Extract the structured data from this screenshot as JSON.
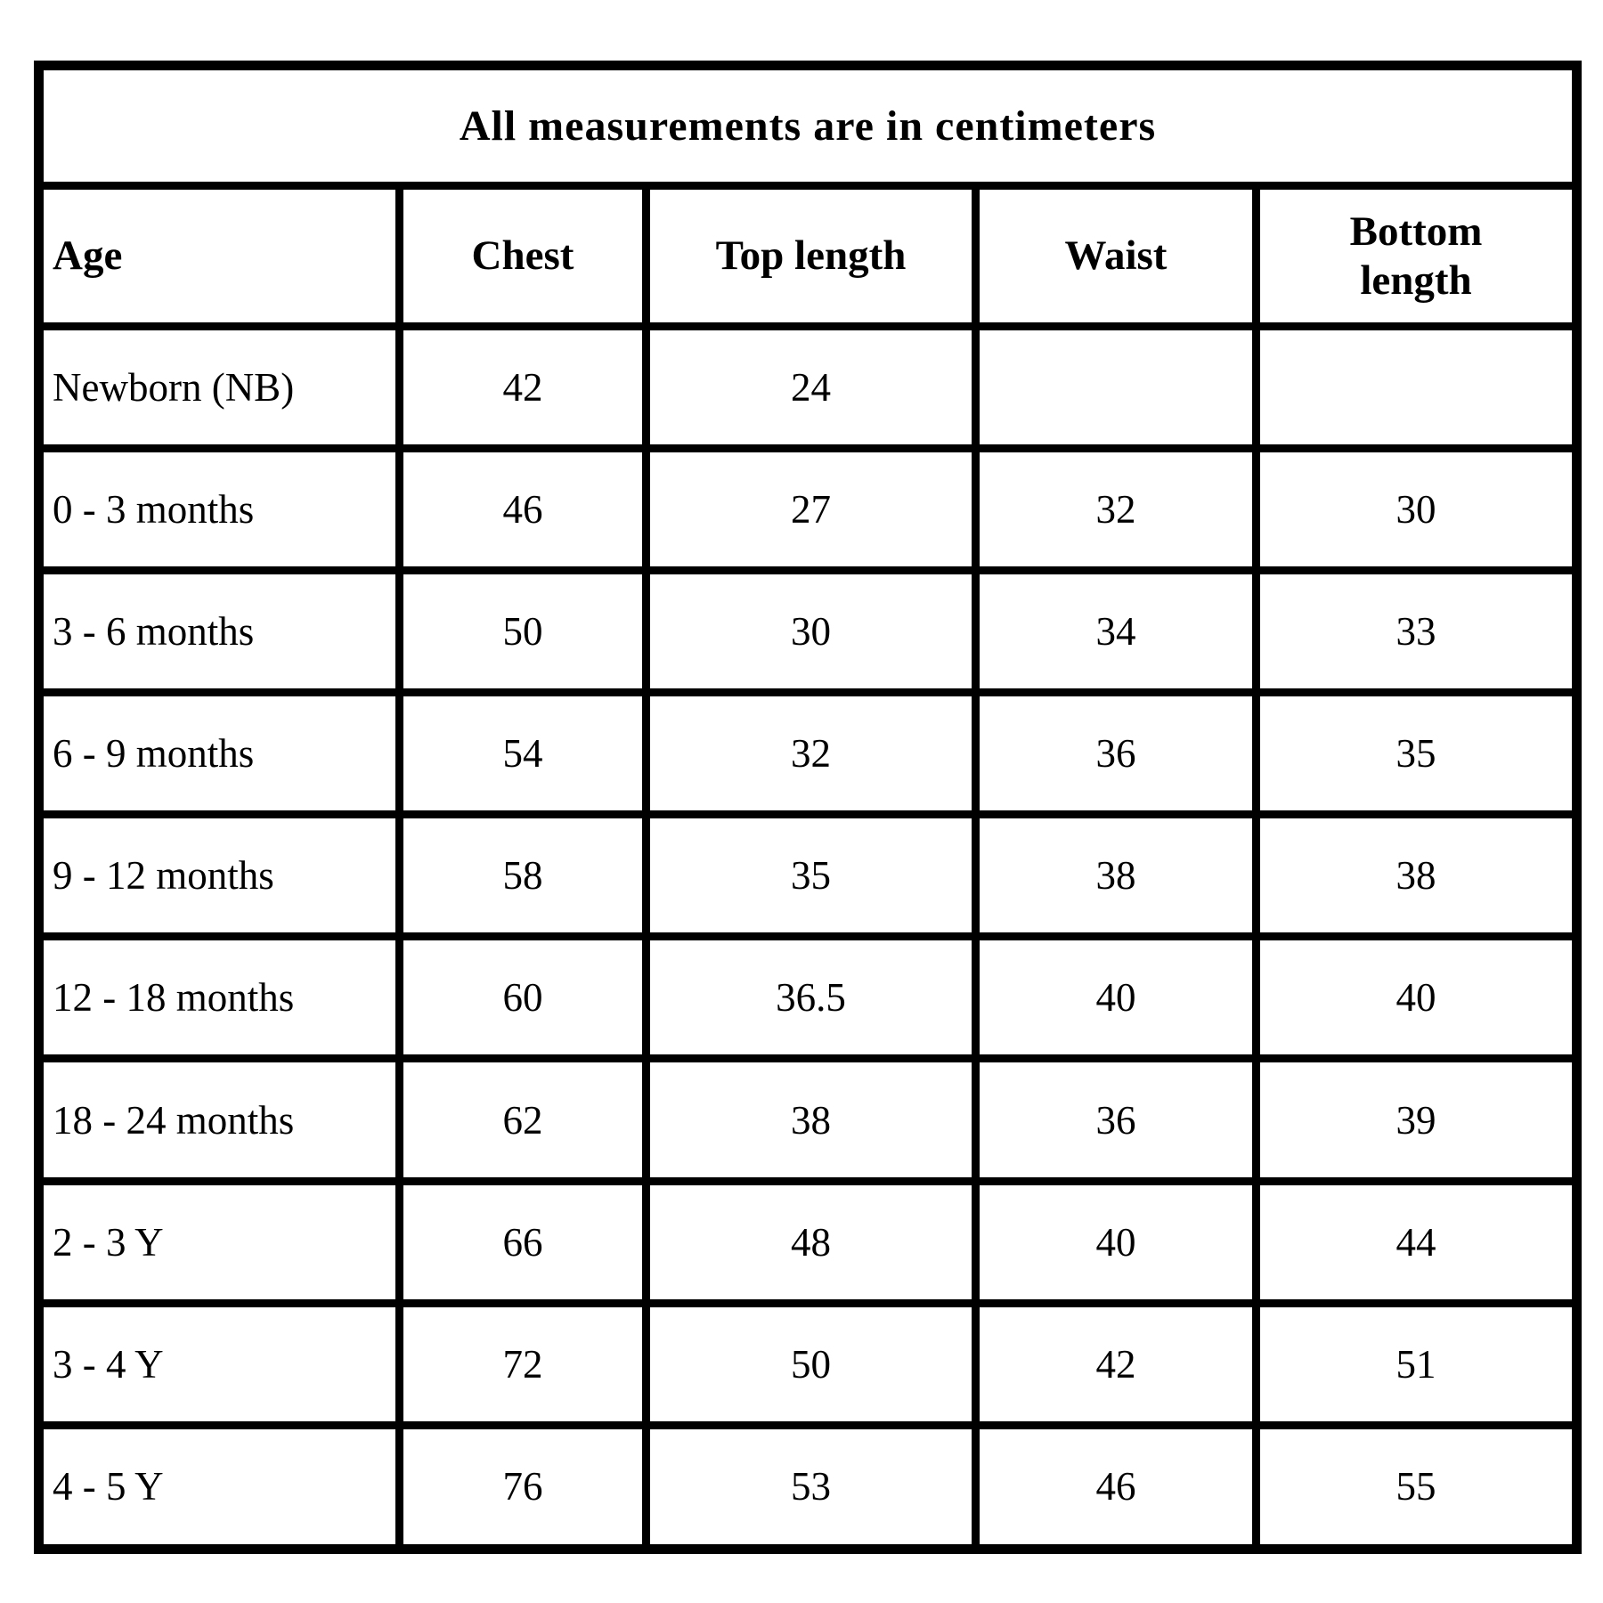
{
  "chart_data": {
    "type": "table",
    "title": "All measurements are in centimeters",
    "columns": [
      "Age",
      "Chest",
      "Top length",
      "Waist",
      "Bottom length"
    ],
    "rows": [
      [
        "Newborn (NB)",
        "42",
        "24",
        "",
        ""
      ],
      [
        "0 - 3 months",
        "46",
        "27",
        "32",
        "30"
      ],
      [
        "3 - 6 months",
        "50",
        "30",
        "34",
        "33"
      ],
      [
        "6 - 9 months",
        "54",
        "32",
        "36",
        "35"
      ],
      [
        "9 - 12 months",
        "58",
        "35",
        "38",
        "38"
      ],
      [
        "12 - 18 months",
        "60",
        "36.5",
        "40",
        "40"
      ],
      [
        "18 - 24 months",
        "62",
        "38",
        "36",
        "39"
      ],
      [
        "2 - 3 Y",
        "66",
        "48",
        "40",
        "44"
      ],
      [
        "3 - 4 Y",
        "72",
        "50",
        "42",
        "51"
      ],
      [
        "4 - 5 Y",
        "76",
        "53",
        "46",
        "55"
      ]
    ],
    "layout": {
      "grid": "on",
      "units": "centimeters"
    },
    "colors": {
      "border": "#000000",
      "text": "#000000",
      "background": "#ffffff"
    }
  }
}
